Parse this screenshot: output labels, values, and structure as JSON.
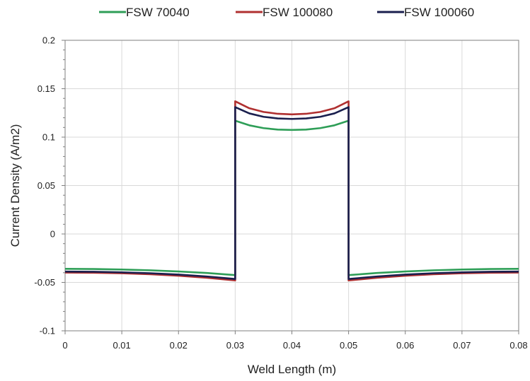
{
  "chart_data": {
    "type": "line",
    "title": "",
    "xlabel": "Weld Length (m)",
    "ylabel": "Current Density (A/m2)",
    "xlim": [
      0,
      0.08
    ],
    "ylim": [
      -0.1,
      0.2
    ],
    "x_ticks": [
      "0",
      "0.01",
      "0.02",
      "0.03",
      "0.04",
      "0.05",
      "0.06",
      "0.07",
      "0.08"
    ],
    "y_ticks": [
      "0.2",
      "0.15",
      "0.1",
      "0.05",
      "0",
      "-0.05",
      "-0.1"
    ],
    "grid": true,
    "legend_position": "top",
    "series": [
      {
        "name": "FSW 70040",
        "color": "#2e9e57",
        "x": [
          0,
          0.005,
          0.01,
          0.015,
          0.02,
          0.025,
          0.03,
          0.03,
          0.0325,
          0.035,
          0.0375,
          0.04,
          0.0425,
          0.045,
          0.0475,
          0.05,
          0.05,
          0.055,
          0.06,
          0.065,
          0.07,
          0.075,
          0.08
        ],
        "y": [
          -0.036,
          -0.0362,
          -0.0367,
          -0.0375,
          -0.0387,
          -0.0403,
          -0.0425,
          0.117,
          0.1122,
          0.1093,
          0.1078,
          0.1074,
          0.1078,
          0.1093,
          0.1122,
          0.117,
          -0.0425,
          -0.0403,
          -0.0387,
          -0.0375,
          -0.0367,
          -0.0362,
          -0.036
        ]
      },
      {
        "name": "FSW 100080",
        "color": "#b03030",
        "x": [
          0,
          0.005,
          0.01,
          0.015,
          0.02,
          0.025,
          0.03,
          0.03,
          0.0325,
          0.035,
          0.0375,
          0.04,
          0.0425,
          0.045,
          0.0475,
          0.05,
          0.05,
          0.055,
          0.06,
          0.065,
          0.07,
          0.075,
          0.08
        ],
        "y": [
          -0.0398,
          -0.04,
          -0.0406,
          -0.0416,
          -0.0431,
          -0.0452,
          -0.048,
          0.137,
          0.1298,
          0.126,
          0.1241,
          0.1235,
          0.1241,
          0.126,
          0.1298,
          0.137,
          -0.048,
          -0.0452,
          -0.0431,
          -0.0416,
          -0.0406,
          -0.04,
          -0.0398
        ]
      },
      {
        "name": "FSW 100060",
        "color": "#1a1f4e",
        "x": [
          0,
          0.005,
          0.01,
          0.015,
          0.02,
          0.025,
          0.03,
          0.03,
          0.0325,
          0.035,
          0.0375,
          0.04,
          0.0425,
          0.045,
          0.0475,
          0.05,
          0.05,
          0.055,
          0.06,
          0.065,
          0.07,
          0.075,
          0.08
        ],
        "y": [
          -0.0388,
          -0.039,
          -0.0396,
          -0.0405,
          -0.0419,
          -0.0439,
          -0.0465,
          0.131,
          0.1245,
          0.121,
          0.1193,
          0.1188,
          0.1193,
          0.121,
          0.1245,
          0.131,
          -0.0465,
          -0.0439,
          -0.0419,
          -0.0405,
          -0.0396,
          -0.039,
          -0.0388
        ]
      }
    ]
  }
}
